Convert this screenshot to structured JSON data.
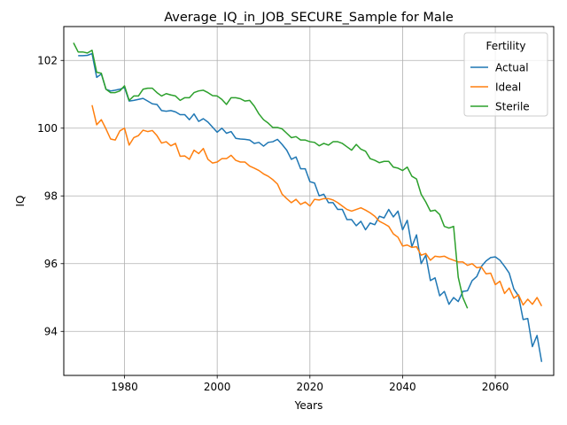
{
  "chart_data": {
    "type": "line",
    "title": "Average_IQ_in_JOB_SECURE_Sample for Male",
    "xlabel": "Years",
    "ylabel": "IQ",
    "xlim": [
      1966.9,
      2072.6
    ],
    "ylim": [
      92.7,
      103.0
    ],
    "xticks": [
      1980,
      2000,
      2020,
      2040,
      2060
    ],
    "yticks": [
      94,
      96,
      98,
      100,
      102
    ],
    "grid": true,
    "legend": {
      "title": "Fertility",
      "placement": "top-right"
    },
    "series": [
      {
        "name": "Actual",
        "color": "#1f77b4",
        "points": [
          [
            1970,
            102.14
          ],
          [
            1971,
            102.14
          ],
          [
            1972,
            102.15
          ],
          [
            1973,
            102.2
          ],
          [
            1974,
            101.5
          ],
          [
            1975,
            101.6
          ],
          [
            1976,
            101.15
          ],
          [
            1977,
            101.1
          ],
          [
            1978,
            101.12
          ],
          [
            1979,
            101.15
          ],
          [
            1980,
            101.2
          ],
          [
            1981,
            100.8
          ],
          [
            1982,
            100.82
          ],
          [
            1983,
            100.85
          ],
          [
            1984,
            100.88
          ],
          [
            1985,
            100.8
          ],
          [
            1986,
            100.72
          ],
          [
            1987,
            100.7
          ],
          [
            1988,
            100.52
          ],
          [
            1989,
            100.5
          ],
          [
            1990,
            100.52
          ],
          [
            1991,
            100.48
          ],
          [
            1992,
            100.4
          ],
          [
            1993,
            100.4
          ],
          [
            1994,
            100.25
          ],
          [
            1995,
            100.42
          ],
          [
            1996,
            100.2
          ],
          [
            1997,
            100.28
          ],
          [
            1998,
            100.18
          ],
          [
            1999,
            100.03
          ],
          [
            2000,
            99.88
          ],
          [
            2001,
            100.0
          ],
          [
            2002,
            99.85
          ],
          [
            2003,
            99.9
          ],
          [
            2004,
            99.7
          ],
          [
            2005,
            99.68
          ],
          [
            2006,
            99.67
          ],
          [
            2007,
            99.65
          ],
          [
            2008,
            99.55
          ],
          [
            2009,
            99.58
          ],
          [
            2010,
            99.47
          ],
          [
            2011,
            99.58
          ],
          [
            2012,
            99.6
          ],
          [
            2013,
            99.67
          ],
          [
            2014,
            99.52
          ],
          [
            2015,
            99.35
          ],
          [
            2016,
            99.08
          ],
          [
            2017,
            99.15
          ],
          [
            2018,
            98.8
          ],
          [
            2019,
            98.8
          ],
          [
            2020,
            98.42
          ],
          [
            2021,
            98.38
          ],
          [
            2022,
            98.0
          ],
          [
            2023,
            98.05
          ],
          [
            2024,
            97.8
          ],
          [
            2025,
            97.8
          ],
          [
            2026,
            97.6
          ],
          [
            2027,
            97.6
          ],
          [
            2028,
            97.3
          ],
          [
            2029,
            97.3
          ],
          [
            2030,
            97.12
          ],
          [
            2031,
            97.25
          ],
          [
            2032,
            97.0
          ],
          [
            2033,
            97.2
          ],
          [
            2034,
            97.15
          ],
          [
            2035,
            97.4
          ],
          [
            2036,
            97.35
          ],
          [
            2037,
            97.6
          ],
          [
            2038,
            97.38
          ],
          [
            2039,
            97.55
          ],
          [
            2040,
            97.0
          ],
          [
            2041,
            97.28
          ],
          [
            2042,
            96.5
          ],
          [
            2043,
            96.85
          ],
          [
            2044,
            96.0
          ],
          [
            2045,
            96.25
          ],
          [
            2046,
            95.5
          ],
          [
            2047,
            95.58
          ],
          [
            2048,
            95.05
          ],
          [
            2049,
            95.18
          ],
          [
            2050,
            94.8
          ],
          [
            2051,
            95.0
          ],
          [
            2052,
            94.88
          ],
          [
            2053,
            95.18
          ],
          [
            2054,
            95.2
          ],
          [
            2055,
            95.5
          ],
          [
            2056,
            95.62
          ],
          [
            2057,
            95.92
          ],
          [
            2058,
            96.08
          ],
          [
            2059,
            96.18
          ],
          [
            2060,
            96.2
          ],
          [
            2061,
            96.1
          ],
          [
            2062,
            95.92
          ],
          [
            2063,
            95.72
          ],
          [
            2064,
            95.25
          ],
          [
            2065,
            95.05
          ],
          [
            2066,
            94.35
          ],
          [
            2067,
            94.38
          ],
          [
            2068,
            93.55
          ],
          [
            2069,
            93.88
          ],
          [
            2070,
            93.1
          ]
        ]
      },
      {
        "name": "Ideal",
        "color": "#ff7f0e",
        "points": [
          [
            1973,
            100.68
          ],
          [
            1974,
            100.1
          ],
          [
            1975,
            100.25
          ],
          [
            1976,
            99.98
          ],
          [
            1977,
            99.68
          ],
          [
            1978,
            99.65
          ],
          [
            1979,
            99.92
          ],
          [
            1980,
            100.0
          ],
          [
            1981,
            99.5
          ],
          [
            1982,
            99.72
          ],
          [
            1983,
            99.78
          ],
          [
            1984,
            99.94
          ],
          [
            1985,
            99.9
          ],
          [
            1986,
            99.93
          ],
          [
            1987,
            99.78
          ],
          [
            1988,
            99.56
          ],
          [
            1989,
            99.6
          ],
          [
            1990,
            99.48
          ],
          [
            1991,
            99.55
          ],
          [
            1992,
            99.17
          ],
          [
            1993,
            99.18
          ],
          [
            1994,
            99.08
          ],
          [
            1995,
            99.35
          ],
          [
            1996,
            99.25
          ],
          [
            1997,
            99.4
          ],
          [
            1998,
            99.08
          ],
          [
            1999,
            98.97
          ],
          [
            2000,
            99.0
          ],
          [
            2001,
            99.1
          ],
          [
            2002,
            99.1
          ],
          [
            2003,
            99.2
          ],
          [
            2004,
            99.05
          ],
          [
            2005,
            99.0
          ],
          [
            2006,
            99.0
          ],
          [
            2007,
            98.88
          ],
          [
            2008,
            98.82
          ],
          [
            2009,
            98.75
          ],
          [
            2010,
            98.65
          ],
          [
            2011,
            98.58
          ],
          [
            2012,
            98.48
          ],
          [
            2013,
            98.35
          ],
          [
            2014,
            98.05
          ],
          [
            2015,
            97.92
          ],
          [
            2016,
            97.8
          ],
          [
            2017,
            97.9
          ],
          [
            2018,
            97.75
          ],
          [
            2019,
            97.82
          ],
          [
            2020,
            97.7
          ],
          [
            2021,
            97.9
          ],
          [
            2022,
            97.88
          ],
          [
            2023,
            97.92
          ],
          [
            2024,
            97.92
          ],
          [
            2025,
            97.88
          ],
          [
            2026,
            97.8
          ],
          [
            2027,
            97.7
          ],
          [
            2028,
            97.6
          ],
          [
            2029,
            97.55
          ],
          [
            2030,
            97.6
          ],
          [
            2031,
            97.65
          ],
          [
            2032,
            97.58
          ],
          [
            2033,
            97.5
          ],
          [
            2034,
            97.4
          ],
          [
            2035,
            97.25
          ],
          [
            2036,
            97.18
          ],
          [
            2037,
            97.1
          ],
          [
            2038,
            96.88
          ],
          [
            2039,
            96.78
          ],
          [
            2040,
            96.52
          ],
          [
            2041,
            96.55
          ],
          [
            2042,
            96.48
          ],
          [
            2043,
            96.5
          ],
          [
            2044,
            96.25
          ],
          [
            2045,
            96.3
          ],
          [
            2046,
            96.1
          ],
          [
            2047,
            96.22
          ],
          [
            2048,
            96.2
          ],
          [
            2049,
            96.22
          ],
          [
            2050,
            96.15
          ],
          [
            2051,
            96.1
          ],
          [
            2052,
            96.05
          ],
          [
            2053,
            96.05
          ],
          [
            2054,
            95.95
          ],
          [
            2055,
            96.0
          ],
          [
            2056,
            95.88
          ],
          [
            2057,
            95.9
          ],
          [
            2058,
            95.7
          ],
          [
            2059,
            95.72
          ],
          [
            2060,
            95.38
          ],
          [
            2061,
            95.48
          ],
          [
            2062,
            95.12
          ],
          [
            2063,
            95.28
          ],
          [
            2064,
            94.98
          ],
          [
            2065,
            95.08
          ],
          [
            2066,
            94.78
          ],
          [
            2067,
            94.95
          ],
          [
            2068,
            94.8
          ],
          [
            2069,
            95.0
          ],
          [
            2070,
            94.75
          ]
        ]
      },
      {
        "name": "Sterile",
        "color": "#2ca02c",
        "points": [
          [
            1969,
            102.52
          ],
          [
            1970,
            102.25
          ],
          [
            1971,
            102.25
          ],
          [
            1972,
            102.22
          ],
          [
            1973,
            102.3
          ],
          [
            1974,
            101.65
          ],
          [
            1975,
            101.62
          ],
          [
            1976,
            101.15
          ],
          [
            1977,
            101.05
          ],
          [
            1978,
            101.05
          ],
          [
            1979,
            101.1
          ],
          [
            1980,
            101.25
          ],
          [
            1981,
            100.82
          ],
          [
            1982,
            100.95
          ],
          [
            1983,
            100.95
          ],
          [
            1984,
            101.15
          ],
          [
            1985,
            101.18
          ],
          [
            1986,
            101.18
          ],
          [
            1987,
            101.05
          ],
          [
            1988,
            100.95
          ],
          [
            1989,
            101.02
          ],
          [
            1990,
            100.98
          ],
          [
            1991,
            100.95
          ],
          [
            1992,
            100.82
          ],
          [
            1993,
            100.9
          ],
          [
            1994,
            100.9
          ],
          [
            1995,
            101.05
          ],
          [
            1996,
            101.1
          ],
          [
            1997,
            101.12
          ],
          [
            1998,
            101.05
          ],
          [
            1999,
            100.96
          ],
          [
            2000,
            100.95
          ],
          [
            2001,
            100.85
          ],
          [
            2002,
            100.7
          ],
          [
            2003,
            100.9
          ],
          [
            2004,
            100.9
          ],
          [
            2005,
            100.87
          ],
          [
            2006,
            100.8
          ],
          [
            2007,
            100.82
          ],
          [
            2008,
            100.65
          ],
          [
            2009,
            100.42
          ],
          [
            2010,
            100.25
          ],
          [
            2011,
            100.15
          ],
          [
            2012,
            100.02
          ],
          [
            2013,
            100.02
          ],
          [
            2014,
            99.98
          ],
          [
            2015,
            99.85
          ],
          [
            2016,
            99.72
          ],
          [
            2017,
            99.75
          ],
          [
            2018,
            99.65
          ],
          [
            2019,
            99.65
          ],
          [
            2020,
            99.6
          ],
          [
            2021,
            99.58
          ],
          [
            2022,
            99.48
          ],
          [
            2023,
            99.55
          ],
          [
            2024,
            99.5
          ],
          [
            2025,
            99.6
          ],
          [
            2026,
            99.6
          ],
          [
            2027,
            99.55
          ],
          [
            2028,
            99.45
          ],
          [
            2029,
            99.35
          ],
          [
            2030,
            99.52
          ],
          [
            2031,
            99.38
          ],
          [
            2032,
            99.32
          ],
          [
            2033,
            99.1
          ],
          [
            2034,
            99.05
          ],
          [
            2035,
            98.98
          ],
          [
            2036,
            99.02
          ],
          [
            2037,
            99.02
          ],
          [
            2038,
            98.85
          ],
          [
            2039,
            98.82
          ],
          [
            2040,
            98.75
          ],
          [
            2041,
            98.85
          ],
          [
            2042,
            98.58
          ],
          [
            2043,
            98.5
          ],
          [
            2044,
            98.05
          ],
          [
            2045,
            97.82
          ],
          [
            2046,
            97.55
          ],
          [
            2047,
            97.58
          ],
          [
            2048,
            97.45
          ],
          [
            2049,
            97.1
          ],
          [
            2050,
            97.05
          ],
          [
            2051,
            97.1
          ],
          [
            2052,
            95.6
          ],
          [
            2053,
            95.0
          ],
          [
            2054,
            94.68
          ]
        ]
      }
    ]
  }
}
